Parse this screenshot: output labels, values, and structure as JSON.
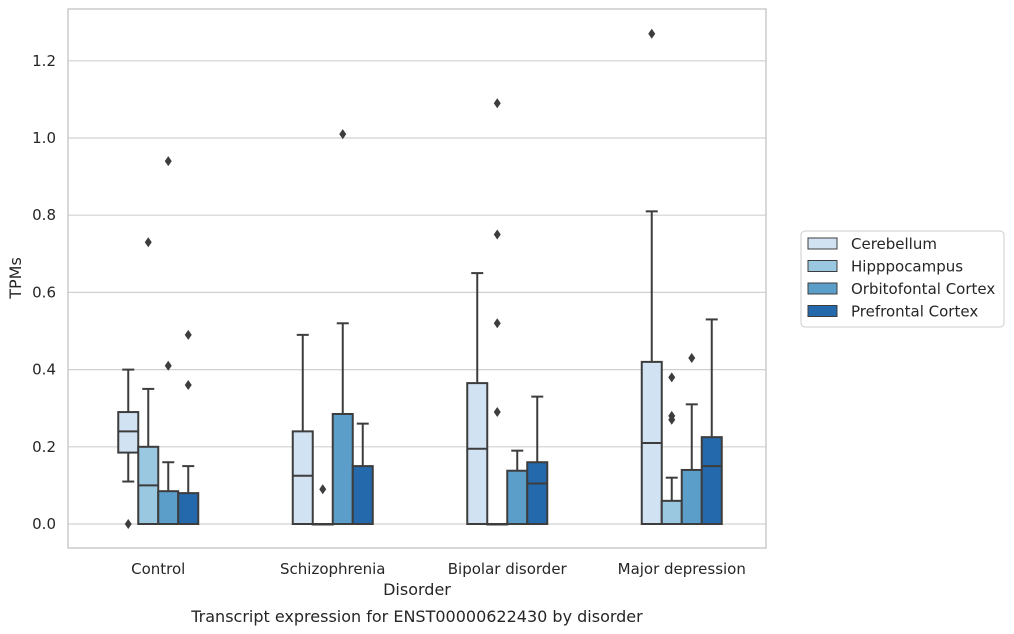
{
  "chart_data": {
    "type": "box",
    "title": "",
    "caption": "Transcript expression for ENST00000622430 by disorder",
    "xlabel": "Disorder",
    "ylabel": "TPMs",
    "ylim": [
      -0.06,
      1.34
    ],
    "yticks": [
      0.0,
      0.2,
      0.4,
      0.6,
      0.8,
      1.0,
      1.2
    ],
    "ytick_labels": [
      "0.0",
      "0.2",
      "0.4",
      "0.6",
      "0.8",
      "1.0",
      "1.2"
    ],
    "grid": "horizontal",
    "legend_position": "right",
    "categories": [
      "Control",
      "Schizophrenia",
      "Bipolar disorder",
      "Major depression"
    ],
    "series": [
      {
        "name": "Cerebellum",
        "color": "#d1e2f2",
        "boxes": [
          {
            "whisker_low": 0.11,
            "q1": 0.185,
            "median": 0.24,
            "q3": 0.29,
            "whisker_high": 0.4,
            "outliers": [
              0.0
            ]
          },
          {
            "whisker_low": 0.0,
            "q1": 0.0,
            "median": 0.125,
            "q3": 0.24,
            "whisker_high": 0.49,
            "outliers": []
          },
          {
            "whisker_low": 0.0,
            "q1": 0.0,
            "median": 0.195,
            "q3": 0.365,
            "whisker_high": 0.65,
            "outliers": []
          },
          {
            "whisker_low": 0.0,
            "q1": 0.0,
            "median": 0.21,
            "q3": 0.42,
            "whisker_high": 0.81,
            "outliers": [
              1.27
            ]
          }
        ]
      },
      {
        "name": "Hipppocampus",
        "color": "#9ac8e0",
        "boxes": [
          {
            "whisker_low": 0.0,
            "q1": 0.0,
            "median": 0.1,
            "q3": 0.2,
            "whisker_high": 0.35,
            "outliers": [
              0.73
            ]
          },
          {
            "whisker_low": 0.0,
            "q1": 0.0,
            "median": 0.0,
            "q3": 0.0,
            "whisker_high": 0.0,
            "outliers": [
              0.09
            ]
          },
          {
            "whisker_low": 0.0,
            "q1": 0.0,
            "median": 0.0,
            "q3": 0.0,
            "whisker_high": 0.0,
            "outliers": [
              0.29,
              0.52,
              0.75,
              1.09
            ]
          },
          {
            "whisker_low": 0.0,
            "q1": 0.0,
            "median": 0.0,
            "q3": 0.06,
            "whisker_high": 0.12,
            "outliers": [
              0.27,
              0.28,
              0.38
            ]
          }
        ]
      },
      {
        "name": "Orbitofontal Cortex",
        "color": "#5a9ec9",
        "boxes": [
          {
            "whisker_low": 0.0,
            "q1": 0.0,
            "median": 0.0,
            "q3": 0.085,
            "whisker_high": 0.16,
            "outliers": [
              0.41,
              0.94
            ]
          },
          {
            "whisker_low": 0.0,
            "q1": 0.0,
            "median": 0.0,
            "q3": 0.285,
            "whisker_high": 0.52,
            "outliers": [
              1.01
            ]
          },
          {
            "whisker_low": 0.0,
            "q1": 0.0,
            "median": 0.0,
            "q3": 0.138,
            "whisker_high": 0.19,
            "outliers": []
          },
          {
            "whisker_low": 0.0,
            "q1": 0.0,
            "median": 0.0,
            "q3": 0.14,
            "whisker_high": 0.31,
            "outliers": [
              0.43
            ]
          }
        ]
      },
      {
        "name": "Prefrontal Cortex",
        "color": "#2469ab",
        "boxes": [
          {
            "whisker_low": 0.0,
            "q1": 0.0,
            "median": 0.0,
            "q3": 0.08,
            "whisker_high": 0.15,
            "outliers": [
              0.36,
              0.49
            ]
          },
          {
            "whisker_low": 0.0,
            "q1": 0.0,
            "median": 0.0,
            "q3": 0.15,
            "whisker_high": 0.26,
            "outliers": []
          },
          {
            "whisker_low": 0.0,
            "q1": 0.0,
            "median": 0.105,
            "q3": 0.16,
            "whisker_high": 0.33,
            "outliers": []
          },
          {
            "whisker_low": 0.0,
            "q1": 0.0,
            "median": 0.15,
            "q3": 0.225,
            "whisker_high": 0.53,
            "outliers": []
          }
        ]
      }
    ]
  }
}
